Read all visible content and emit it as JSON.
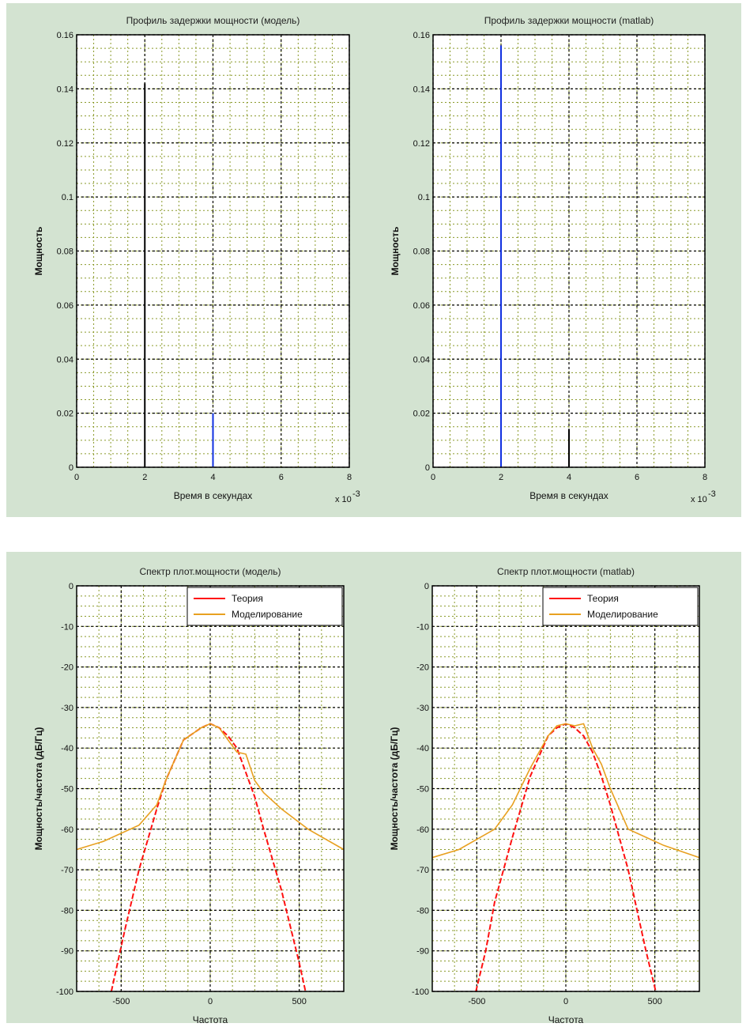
{
  "colors": {
    "panel_bg": "#d3e3d1",
    "axes_bg": "#ffffff",
    "grid_major": "#000000",
    "grid_minor": "#8a9a2a",
    "black_line": "#000000",
    "blue_line": "#1030e0",
    "red_line": "#ff1010",
    "orange_line": "#e8a020"
  },
  "chart_data": [
    {
      "type": "stem",
      "title": "Профиль задержки мощности (модель)",
      "xlabel": "Время в секундах",
      "ylabel": "Мощность",
      "x_multiplier_label": "x 10",
      "x_multiplier_exp": "-3",
      "xlim": [
        0,
        8
      ],
      "ylim": [
        0,
        0.16
      ],
      "xticks": [
        "0",
        "2",
        "4",
        "6",
        "8"
      ],
      "yticks": [
        "0",
        "0.02",
        "0.04",
        "0.06",
        "0.08",
        "0.1",
        "0.12",
        "0.14",
        "0.16"
      ],
      "grid": true,
      "stems": [
        {
          "x": 2,
          "y": 0.142,
          "color": "black"
        },
        {
          "x": 4,
          "y": 0.02,
          "color": "blue"
        }
      ]
    },
    {
      "type": "stem",
      "title": "Профиль задержки мощности (matlab)",
      "xlabel": "Время в секундах",
      "ylabel": "Мощность",
      "x_multiplier_label": "x 10",
      "x_multiplier_exp": "-3",
      "xlim": [
        0,
        8
      ],
      "ylim": [
        0,
        0.16
      ],
      "xticks": [
        "0",
        "2",
        "4",
        "6",
        "8"
      ],
      "yticks": [
        "0",
        "0.02",
        "0.04",
        "0.06",
        "0.08",
        "0.1",
        "0.12",
        "0.14",
        "0.16"
      ],
      "grid": true,
      "stems": [
        {
          "x": 2,
          "y": 0.156,
          "color": "blue"
        },
        {
          "x": 4,
          "y": 0.014,
          "color": "black"
        }
      ]
    },
    {
      "type": "line",
      "title": "Спектр плот.мощности (модель)",
      "xlabel": "Частота",
      "ylabel": "Мощность/частота (дБ/Гц)",
      "xlim": [
        -750,
        750
      ],
      "ylim": [
        -100,
        0
      ],
      "xticks": [
        "-500",
        "0",
        "500"
      ],
      "yticks": [
        "0",
        "-10",
        "-20",
        "-30",
        "-40",
        "-50",
        "-60",
        "-70",
        "-80",
        "-90",
        "-100"
      ],
      "grid": true,
      "legend": {
        "position": "top-right",
        "entries": [
          "Теория",
          "Моделирование"
        ]
      },
      "series": [
        {
          "name": "Теория",
          "color": "red",
          "x": [
            -555,
            -480,
            -400,
            -300,
            -250,
            -150,
            -50,
            0,
            50,
            100,
            150,
            250,
            300,
            400,
            450,
            500,
            535
          ],
          "y": [
            -100,
            -85,
            -70,
            -55,
            -48,
            -38,
            -35,
            -34,
            -35,
            -37,
            -40,
            -52,
            -60,
            -75,
            -84,
            -93,
            -100
          ]
        },
        {
          "name": "Моделирование",
          "color": "orange",
          "x": [
            -750,
            -600,
            -400,
            -300,
            -250,
            -200,
            -150,
            -100,
            -50,
            0,
            50,
            100,
            150,
            200,
            250,
            300,
            400,
            550,
            750
          ],
          "y": [
            -65,
            -63,
            -59,
            -54,
            -48,
            -43,
            -38,
            -36.5,
            -35,
            -34,
            -35,
            -38,
            -41,
            -41.5,
            -48,
            -51,
            -55,
            -60,
            -65
          ]
        }
      ]
    },
    {
      "type": "line",
      "title": "Спектр плот.мощности (matlab)",
      "xlabel": "Частота",
      "ylabel": "Мощность/частота (дБ/Гц)",
      "xlim": [
        -750,
        750
      ],
      "ylim": [
        -100,
        0
      ],
      "xticks": [
        "-500",
        "0",
        "500"
      ],
      "yticks": [
        "0",
        "-10",
        "-20",
        "-30",
        "-40",
        "-50",
        "-60",
        "-70",
        "-80",
        "-90",
        "-100"
      ],
      "grid": true,
      "legend": {
        "position": "top-right",
        "entries": [
          "Теория",
          "Моделирование"
        ]
      },
      "series": [
        {
          "name": "Теория",
          "color": "red",
          "x": [
            -505,
            -450,
            -400,
            -300,
            -200,
            -100,
            -50,
            0,
            50,
            100,
            150,
            200,
            250,
            300,
            350,
            400,
            450,
            505
          ],
          "y": [
            -100,
            -90,
            -78,
            -62,
            -47,
            -37,
            -35,
            -34,
            -35,
            -37,
            -41,
            -47,
            -54,
            -62,
            -70,
            -80,
            -90,
            -100
          ]
        },
        {
          "name": "Моделирование",
          "color": "orange",
          "x": [
            -750,
            -600,
            -400,
            -300,
            -200,
            -100,
            -50,
            0,
            50,
            100,
            150,
            200,
            250,
            300,
            350,
            400,
            550,
            750
          ],
          "y": [
            -67,
            -65,
            -60,
            -54,
            -45,
            -37,
            -34.5,
            -34,
            -34.5,
            -34,
            -40,
            -44,
            -50,
            -55,
            -60,
            -61,
            -64,
            -67
          ]
        }
      ]
    }
  ]
}
